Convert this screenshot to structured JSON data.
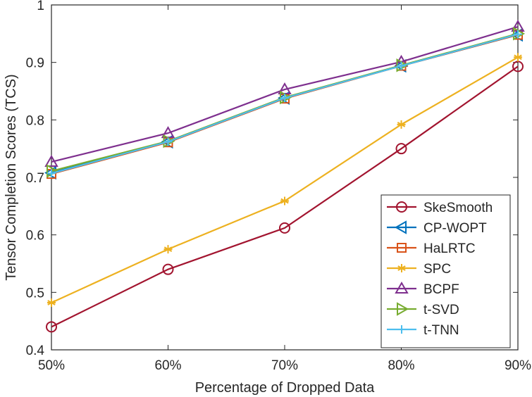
{
  "chart_data": {
    "type": "line",
    "title": "",
    "xlabel": "Percentage of Dropped Data",
    "ylabel": "Tensor Completion Scores (TCS)",
    "categories": [
      "50%",
      "60%",
      "70%",
      "80%",
      "90%"
    ],
    "ylim": [
      0.4,
      1.0
    ],
    "yticks": [
      0.4,
      0.5,
      0.6,
      0.7,
      0.8,
      0.9,
      1.0
    ],
    "ytick_labels": [
      "0.4",
      "0.5",
      "0.6",
      "0.7",
      "0.8",
      "0.9",
      "1"
    ],
    "grid": false,
    "legend_position": "bottom-right",
    "series": [
      {
        "name": "SkeSmooth",
        "marker": "circle",
        "color": "#A2142F",
        "values": [
          0.44,
          0.54,
          0.612,
          0.75,
          0.893
        ]
      },
      {
        "name": "CP-WOPT",
        "marker": "triangle-left",
        "color": "#0072BD",
        "values": [
          0.708,
          0.762,
          0.838,
          0.894,
          0.948
        ]
      },
      {
        "name": "HaLRTC",
        "marker": "square",
        "color": "#D95319",
        "values": [
          0.706,
          0.761,
          0.837,
          0.894,
          0.948
        ]
      },
      {
        "name": "SPC",
        "marker": "asterisk",
        "color": "#EDB120",
        "values": [
          0.482,
          0.575,
          0.659,
          0.792,
          0.909
        ]
      },
      {
        "name": "BCPF",
        "marker": "triangle-up",
        "color": "#7E2F8E",
        "values": [
          0.727,
          0.777,
          0.853,
          0.901,
          0.962
        ]
      },
      {
        "name": "t-SVD",
        "marker": "triangle-right",
        "color": "#77AC30",
        "values": [
          0.711,
          0.763,
          0.839,
          0.895,
          0.95
        ]
      },
      {
        "name": "t-TNN",
        "marker": "plus",
        "color": "#4DBEEE",
        "values": [
          0.707,
          0.762,
          0.838,
          0.894,
          0.949
        ]
      }
    ]
  }
}
